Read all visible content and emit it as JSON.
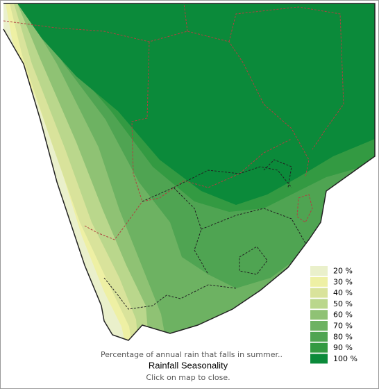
{
  "legend": {
    "items": [
      {
        "label": "20 %",
        "color": "#eaf0cb"
      },
      {
        "label": "30 %",
        "color": "#eef0a4"
      },
      {
        "label": "40 %",
        "color": "#d9e39b"
      },
      {
        "label": "50 %",
        "color": "#bad78c"
      },
      {
        "label": "60 %",
        "color": "#8fc274"
      },
      {
        "label": "70 %",
        "color": "#6db262"
      },
      {
        "label": "80 %",
        "color": "#4fa452"
      },
      {
        "label": "90 %",
        "color": "#339a42"
      },
      {
        "label": "100 %",
        "color": "#0b8a3a"
      }
    ]
  },
  "caption": "Percentage of annual rain that falls in summer..",
  "title": "Rainfall Seasonality",
  "instruction": "Click on map to close."
}
